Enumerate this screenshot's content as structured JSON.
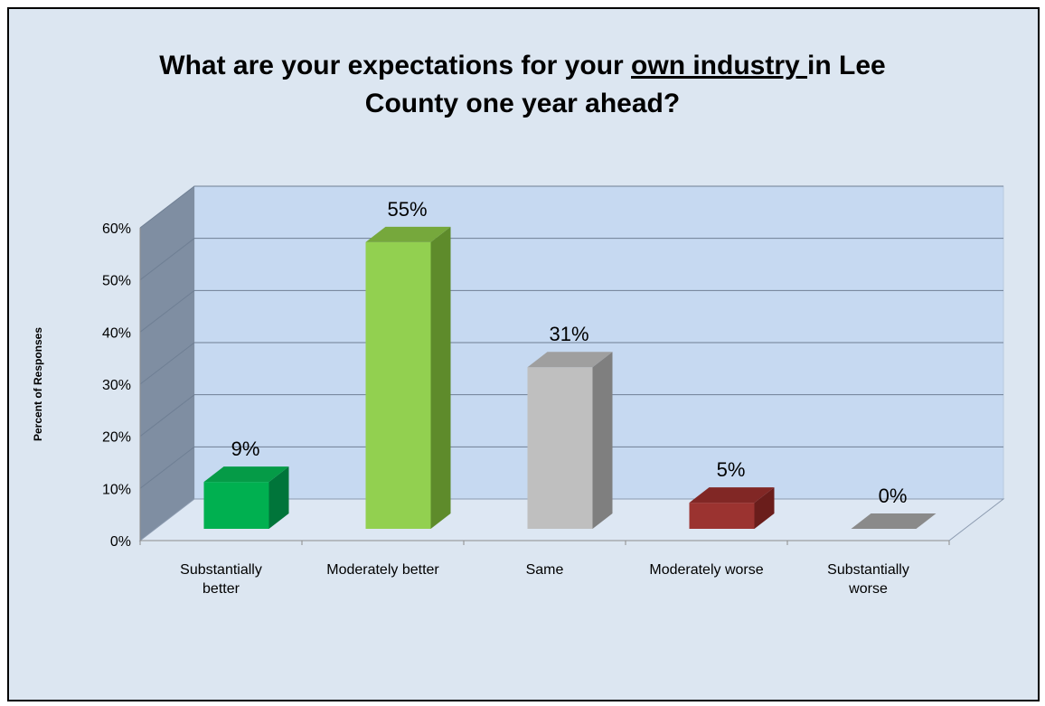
{
  "chart_data": {
    "type": "bar",
    "title": {
      "before": "What are your expectations for your ",
      "underlined": "own industry ",
      "after": "in Lee County one year ahead?"
    },
    "ylabel": "Percent of Responses",
    "xlabel": "",
    "ylim": [
      0,
      60
    ],
    "y_ticks": [
      0,
      10,
      20,
      30,
      40,
      50,
      60
    ],
    "y_tick_labels": [
      "0%",
      "10%",
      "20%",
      "30%",
      "40%",
      "50%",
      "60%"
    ],
    "categories": [
      [
        "Substantially",
        "better"
      ],
      [
        "Moderately better"
      ],
      [
        "Same"
      ],
      [
        "Moderately worse"
      ],
      [
        "Substantially",
        "worse"
      ]
    ],
    "values": [
      9,
      55,
      31,
      5,
      0
    ],
    "data_labels": [
      "9%",
      "55%",
      "31%",
      "5%",
      "0%"
    ],
    "grid": true,
    "style": "3d-column",
    "colors": {
      "bars": [
        {
          "front": "#00b050",
          "side": "#00753a",
          "top": "#059b47"
        },
        {
          "front": "#92d050",
          "side": "#5e8b2b",
          "top": "#76a83c"
        },
        {
          "front": "#bfbfbf",
          "side": "#7f7f7f",
          "top": "#9f9f9f"
        },
        {
          "front": "#9b3330",
          "side": "#6a1d1b",
          "top": "#812725"
        },
        {
          "front": "#9a9a9a",
          "side": "#767676",
          "top": "#8a8a8a"
        }
      ],
      "back_wall": "#c6d9f1",
      "side_wall": "#7f8ea2",
      "floor": "#dde7f3",
      "gridline": "#6f7f94",
      "background": "#dce6f1"
    }
  }
}
